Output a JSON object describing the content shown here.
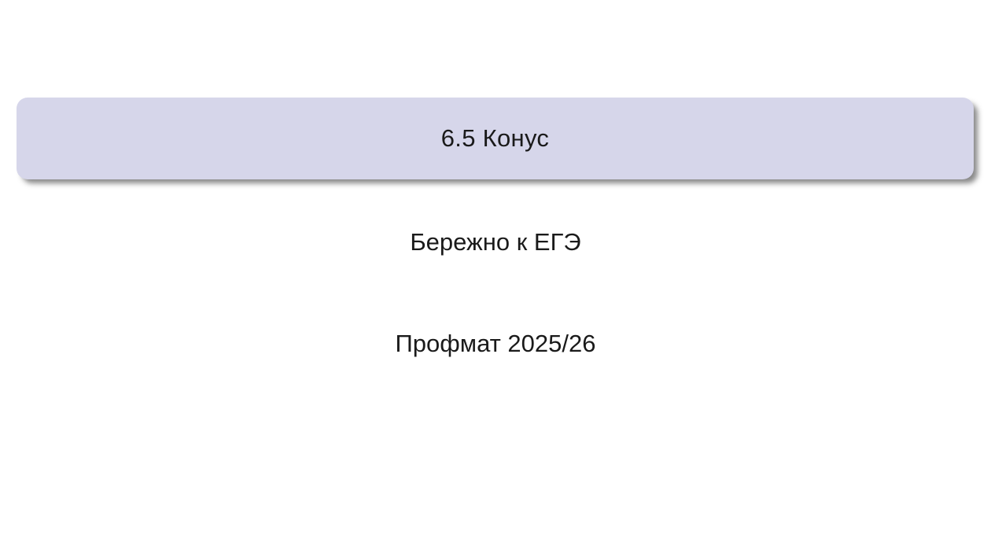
{
  "slide": {
    "title": "6.5 Конус",
    "author": "Бережно к ЕГЭ",
    "date": "Профмат 2025/26",
    "colors": {
      "page_bg": "#ffffff",
      "title_box_bg": "#d6d6ea",
      "title_text": "#1a1a1a",
      "body_text": "#1a1a1a"
    }
  }
}
